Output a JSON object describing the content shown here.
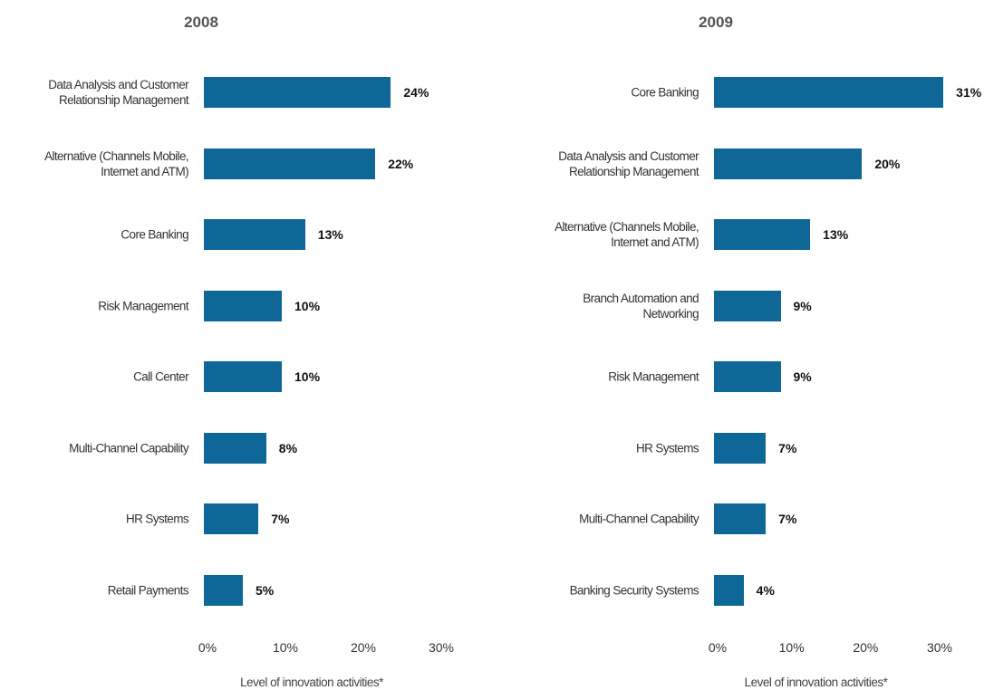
{
  "chart_data": [
    {
      "type": "bar",
      "orientation": "horizontal",
      "title": "2008",
      "color": "#0e6796",
      "categories": [
        "Data Analysis and Customer\nRelationship Management",
        "Alternative (Channels Mobile,\nInternet and ATM)",
        "Core Banking",
        "Risk Management",
        "Call Center",
        "Multi-Channel Capability",
        "HR Systems",
        "Retail Payments"
      ],
      "values": [
        24,
        22,
        13,
        10,
        10,
        8,
        7,
        5
      ],
      "value_labels": [
        "24%",
        "22%",
        "13%",
        "10%",
        "10%",
        "8%",
        "7%",
        "5%"
      ],
      "xlim": [
        0,
        30
      ],
      "xticks": [
        {
          "value": 0,
          "label": "0%"
        },
        {
          "value": 10,
          "label": "10%"
        },
        {
          "value": 20,
          "label": "20%"
        },
        {
          "value": 30,
          "label": "30%"
        }
      ],
      "xlabel": "Level of innovation activities*"
    },
    {
      "type": "bar",
      "orientation": "horizontal",
      "title": "2009",
      "color": "#0e6796",
      "categories": [
        "Core Banking",
        "Data Analysis and Customer\nRelationship Management",
        "Alternative (Channels Mobile,\nInternet and ATM)",
        "Branch Automation and\nNetworking",
        "Risk Management",
        "HR Systems",
        "Multi-Channel Capability",
        "Banking Security Systems"
      ],
      "values": [
        31,
        20,
        13,
        9,
        9,
        7,
        7,
        4
      ],
      "value_labels": [
        "31%",
        "20%",
        "13%",
        "9%",
        "9%",
        "7%",
        "7%",
        "4%"
      ],
      "xlim": [
        0,
        30
      ],
      "xticks": [
        {
          "value": 0,
          "label": "0%"
        },
        {
          "value": 10,
          "label": "10%"
        },
        {
          "value": 20,
          "label": "20%"
        },
        {
          "value": 30,
          "label": "30%"
        }
      ],
      "xlabel": "Level of innovation activities*"
    }
  ]
}
